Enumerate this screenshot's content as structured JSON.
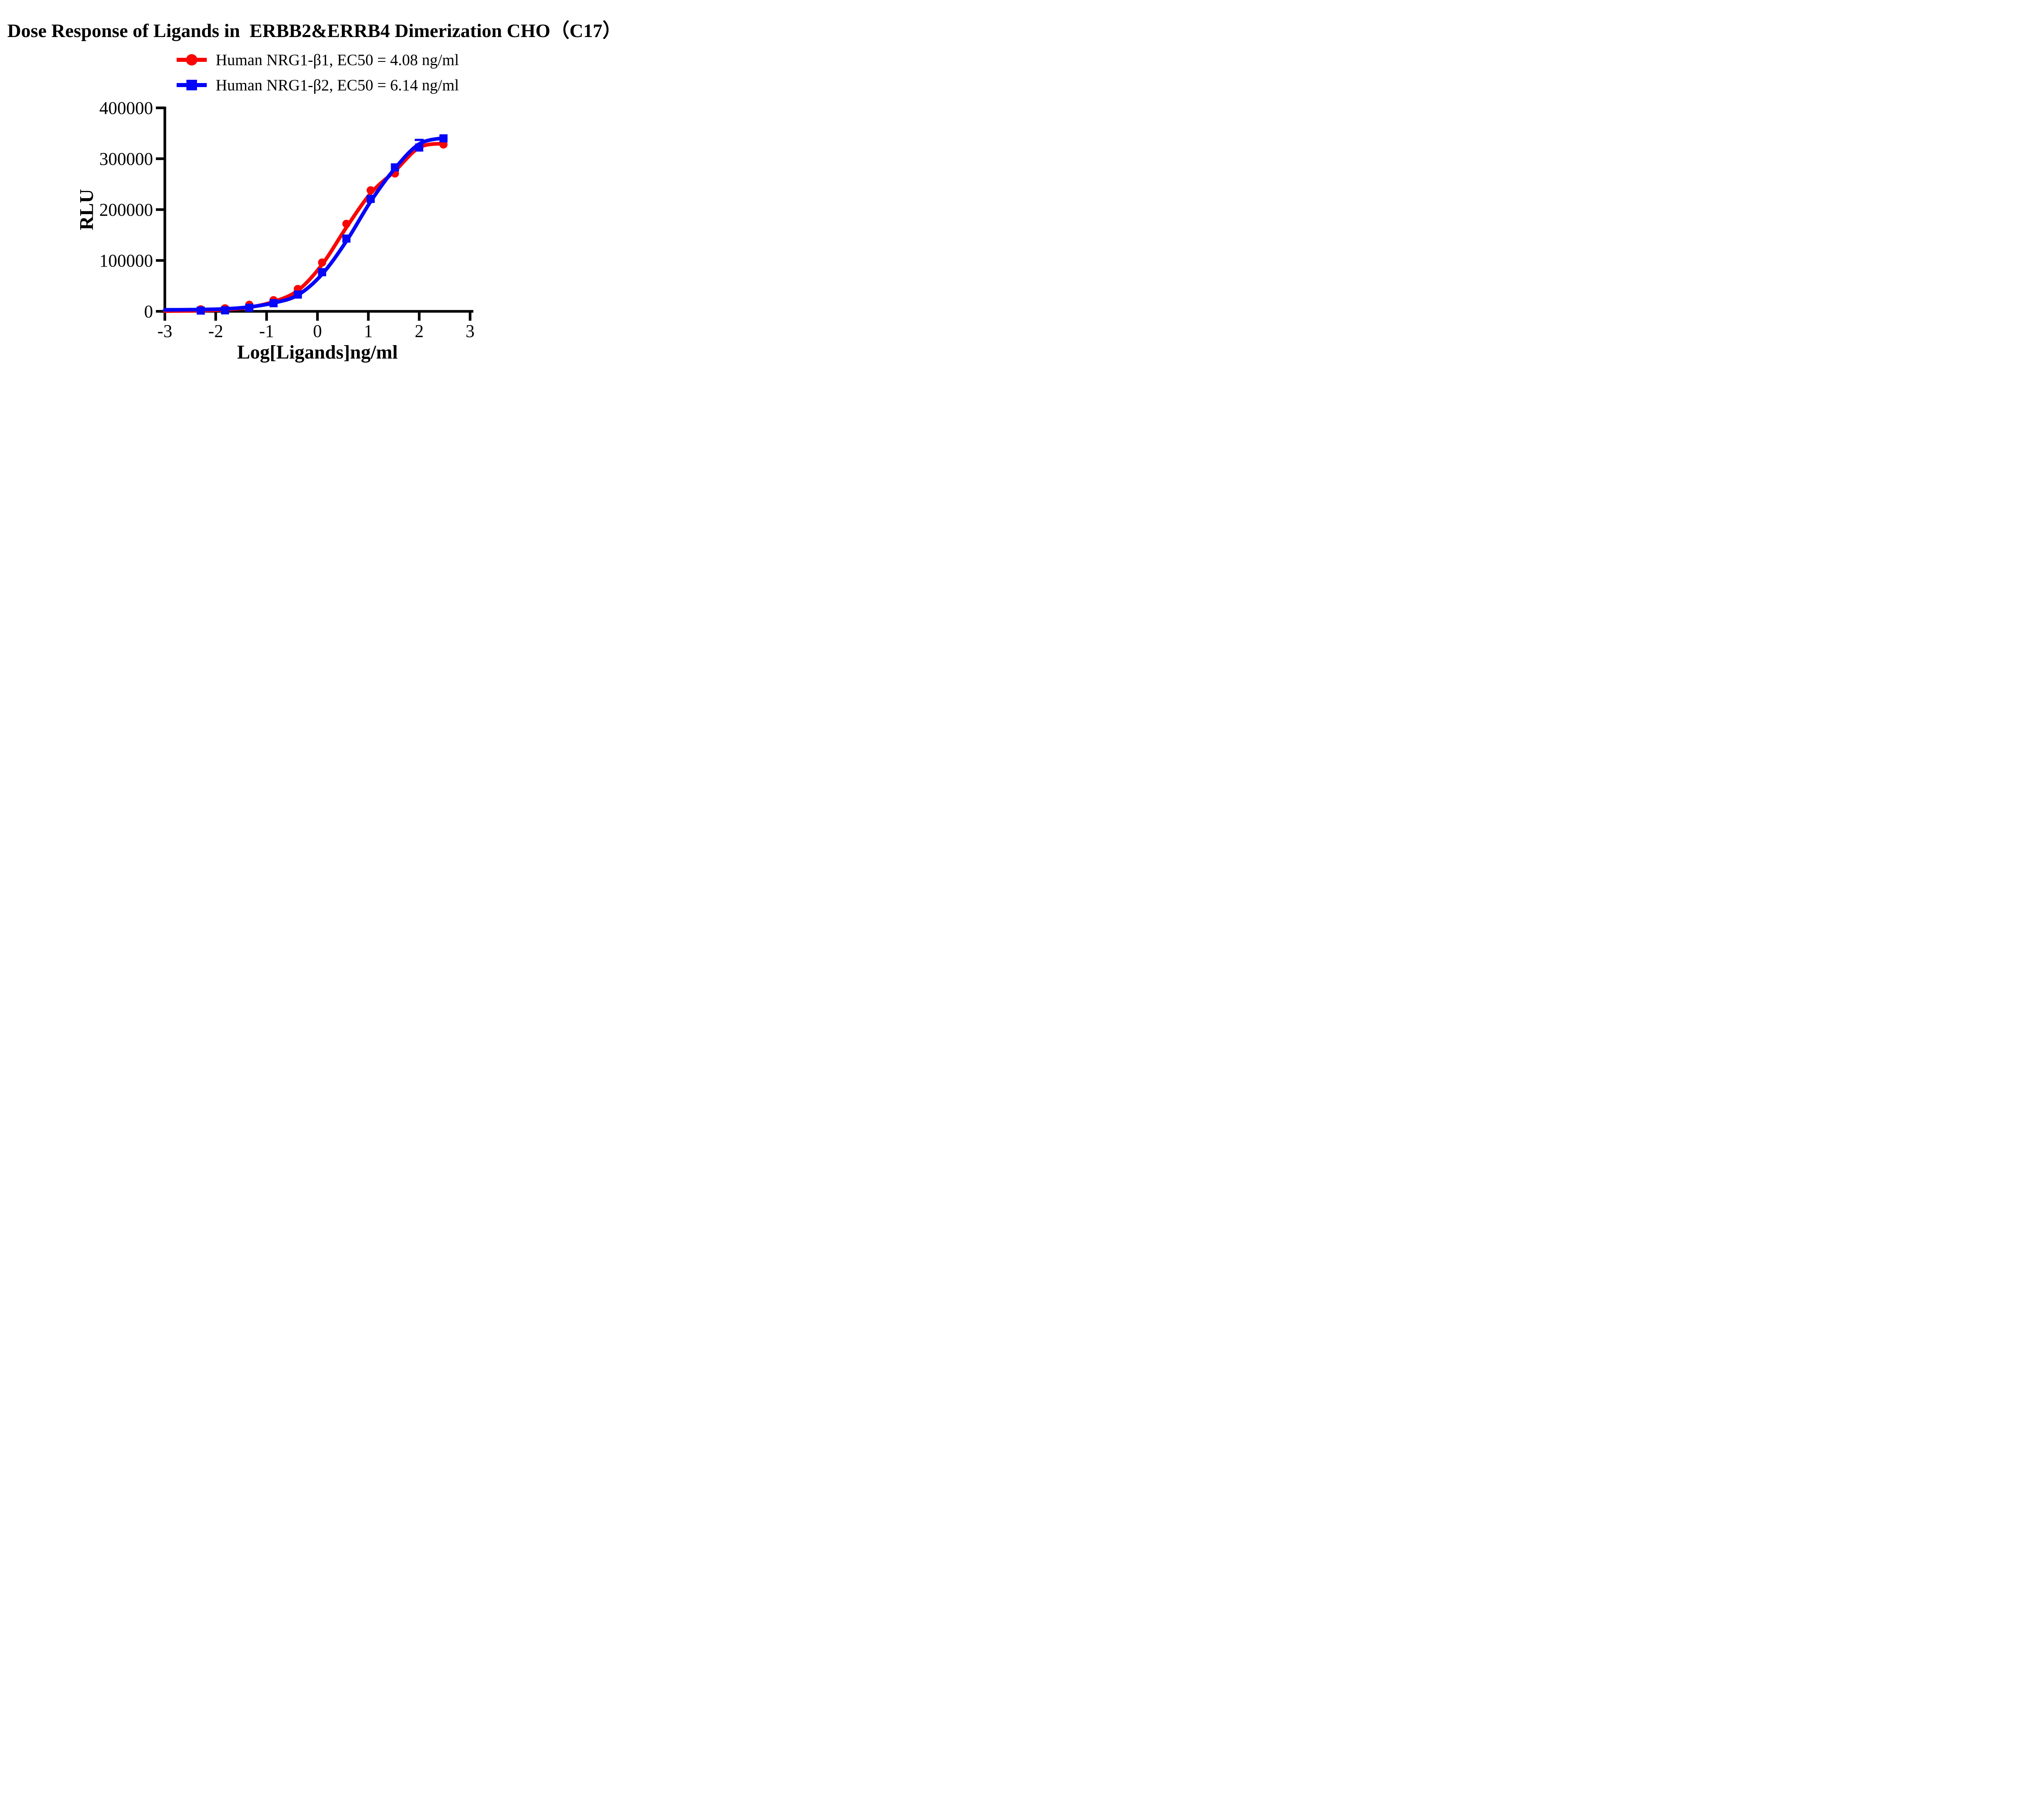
{
  "chart_data": {
    "type": "line",
    "title": "Dose Response of Ligands in  ERBB2&ERRB4 Dimerization CHO（C17）",
    "xlabel": "Log[Ligands]ng/ml",
    "ylabel": "RLU",
    "xlim": [
      -3,
      3
    ],
    "ylim": [
      0,
      400000
    ],
    "x_ticks": [
      -3,
      -2,
      -1,
      0,
      1,
      2,
      3
    ],
    "y_ticks": [
      0,
      100000,
      200000,
      300000,
      400000
    ],
    "grid": false,
    "legend_position": "top-center",
    "axis_color": "#000000",
    "x": [
      -2.294,
      -1.817,
      -1.34,
      -0.863,
      -0.386,
      0.091,
      0.569,
      1.046,
      1.523,
      2.0,
      2.477
    ],
    "series": [
      {
        "name": "Human NRG1-β1",
        "legend": "Human NRG1-β1, EC50 = 4.08 ng/ml",
        "color": "#fa0505",
        "marker": "circle",
        "values": [
          4000,
          6000,
          13000,
          22000,
          44000,
          96000,
          172000,
          238000,
          271000,
          324000,
          328000
        ],
        "curve_points": [
          [
            -3,
            500
          ],
          [
            -2.5,
            900
          ],
          [
            -2.294,
            1300
          ],
          [
            -1.817,
            3200
          ],
          [
            -1.34,
            8000
          ],
          [
            -0.863,
            19000
          ],
          [
            -0.386,
            41000
          ],
          [
            0.091,
            92000
          ],
          [
            0.569,
            165000
          ],
          [
            1.046,
            232000
          ],
          [
            1.523,
            276000
          ],
          [
            2.0,
            322000
          ],
          [
            2.477,
            330000
          ]
        ]
      },
      {
        "name": "Human NRG1-β2",
        "legend": "Human NRG1-β2, EC50 = 6.14 ng/ml",
        "color": "#0505fa",
        "marker": "square",
        "values": [
          1500,
          2000,
          7000,
          16000,
          33000,
          77000,
          143000,
          221000,
          283000,
          322000,
          340000
        ],
        "curve_points": [
          [
            -3,
            3000
          ],
          [
            -2.5,
            3300
          ],
          [
            -2.294,
            3600
          ],
          [
            -1.817,
            4800
          ],
          [
            -1.34,
            8500
          ],
          [
            -0.863,
            16500
          ],
          [
            -0.386,
            32000
          ],
          [
            0.091,
            73000
          ],
          [
            0.569,
            138000
          ],
          [
            1.046,
            216000
          ],
          [
            1.523,
            281000
          ],
          [
            2.0,
            329000
          ],
          [
            2.477,
            341000
          ]
        ],
        "error_bars": [
          {
            "x": 2.0,
            "value": 322000,
            "upper": 337000
          }
        ]
      }
    ]
  }
}
